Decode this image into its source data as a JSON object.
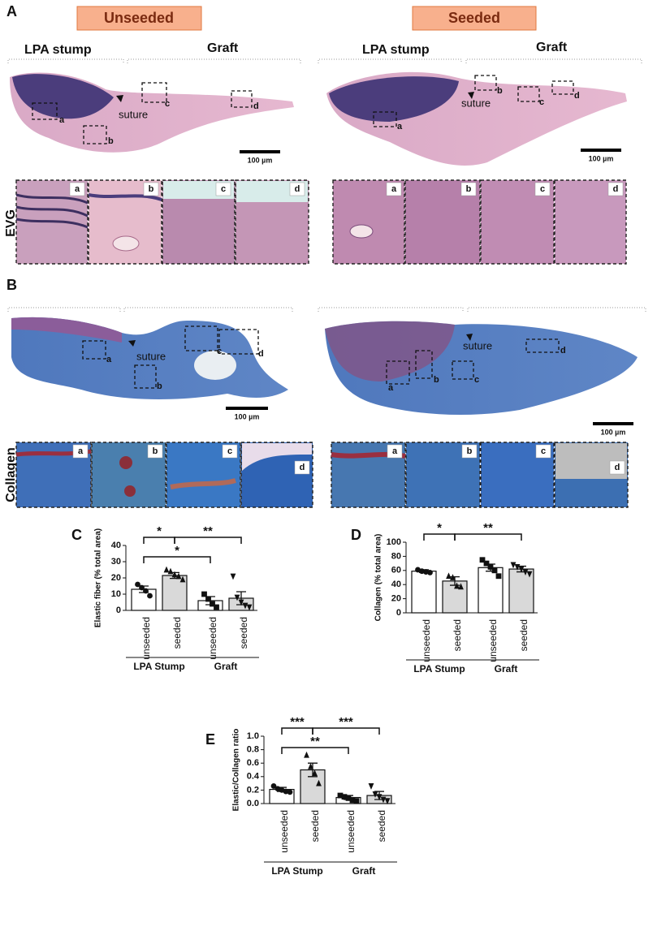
{
  "histology": {
    "panel_a": "A",
    "panel_b": "B",
    "unseeded_header": "Unseeded",
    "seeded_header": "Seeded",
    "region_lpa": "LPA stump",
    "region_graft": "Graft",
    "suture": "suture",
    "inset_letters": [
      "a",
      "b",
      "c",
      "d"
    ],
    "scale_bar": "100 µm",
    "stain_evg": "EVG",
    "stain_collagen": "Collagen"
  },
  "chart_data": [
    {
      "type": "bar",
      "panel": "C",
      "y_label": "Elastic fiber (% total area)",
      "categories": [
        "unseeded",
        "seeded",
        "unseeded",
        "seeded"
      ],
      "groups": [
        "LPA Stump",
        "Graft"
      ],
      "values": [
        13,
        21.5,
        6,
        7.5
      ],
      "errors": [
        2,
        1.8,
        2.5,
        4
      ],
      "points": [
        [
          16,
          14,
          12,
          9
        ],
        [
          25,
          24,
          22,
          21,
          19
        ],
        [
          10,
          7,
          4,
          2
        ],
        [
          21,
          8,
          5,
          3,
          2
        ]
      ],
      "markers": [
        "circle",
        "triangle",
        "square",
        "triangle-down"
      ],
      "colors": [
        "#ffffff",
        "#d9d9d9",
        "#ffffff",
        "#d9d9d9"
      ],
      "ylim": [
        0,
        40
      ],
      "yticks": [
        0,
        10,
        20,
        30,
        40
      ],
      "comparisons": [
        {
          "pair": [
            0,
            1
          ],
          "label": "*"
        },
        {
          "pair": [
            1,
            3
          ],
          "label": "**"
        },
        {
          "pair": [
            0,
            2
          ],
          "label": "*"
        }
      ]
    },
    {
      "type": "bar",
      "panel": "D",
      "y_label": "Collagen (% total area)",
      "categories": [
        "unseeded",
        "seeded",
        "unseeded",
        "seeded"
      ],
      "groups": [
        "LPA Stump",
        "Graft"
      ],
      "values": [
        59,
        45,
        64,
        62
      ],
      "errors": [
        2,
        6,
        5,
        4
      ],
      "points": [
        [
          61,
          59,
          58,
          57
        ],
        [
          52,
          50,
          38,
          37
        ],
        [
          75,
          70,
          65,
          60,
          52
        ],
        [
          68,
          65,
          62,
          58,
          55
        ]
      ],
      "markers": [
        "circle",
        "triangle",
        "square",
        "triangle-down"
      ],
      "colors": [
        "#ffffff",
        "#d9d9d9",
        "#ffffff",
        "#d9d9d9"
      ],
      "ylim": [
        0,
        100
      ],
      "yticks": [
        0,
        20,
        40,
        60,
        80,
        100
      ],
      "comparisons": [
        {
          "pair": [
            0,
            1
          ],
          "label": "*"
        },
        {
          "pair": [
            1,
            3
          ],
          "label": "**"
        }
      ]
    },
    {
      "type": "bar",
      "panel": "E",
      "y_label": "Elastic/Collagen ratio",
      "categories": [
        "unseeded",
        "seeded",
        "unseeded",
        "seeded"
      ],
      "groups": [
        "LPA Stump",
        "Graft"
      ],
      "values": [
        0.21,
        0.5,
        0.09,
        0.12
      ],
      "errors": [
        0.03,
        0.1,
        0.03,
        0.06
      ],
      "points": [
        [
          0.26,
          0.22,
          0.2,
          0.18,
          0.17
        ],
        [
          0.72,
          0.55,
          0.45,
          0.3
        ],
        [
          0.12,
          0.1,
          0.08,
          0.05,
          0.04
        ],
        [
          0.26,
          0.14,
          0.1,
          0.06,
          0.04
        ]
      ],
      "markers": [
        "circle",
        "triangle",
        "square",
        "triangle-down"
      ],
      "colors": [
        "#ffffff",
        "#d9d9d9",
        "#ffffff",
        "#d9d9d9"
      ],
      "ylim": [
        0,
        1
      ],
      "yticks": [
        {
          "value": 0,
          "label": "0.0"
        },
        0.2,
        0.4,
        0.6,
        0.8,
        {
          "value": 1,
          "label": "1.0"
        }
      ],
      "comparisons": [
        {
          "pair": [
            0,
            1
          ],
          "label": "***"
        },
        {
          "pair": [
            1,
            3
          ],
          "label": "***"
        },
        {
          "pair": [
            0,
            2
          ],
          "label": "**"
        }
      ]
    }
  ]
}
